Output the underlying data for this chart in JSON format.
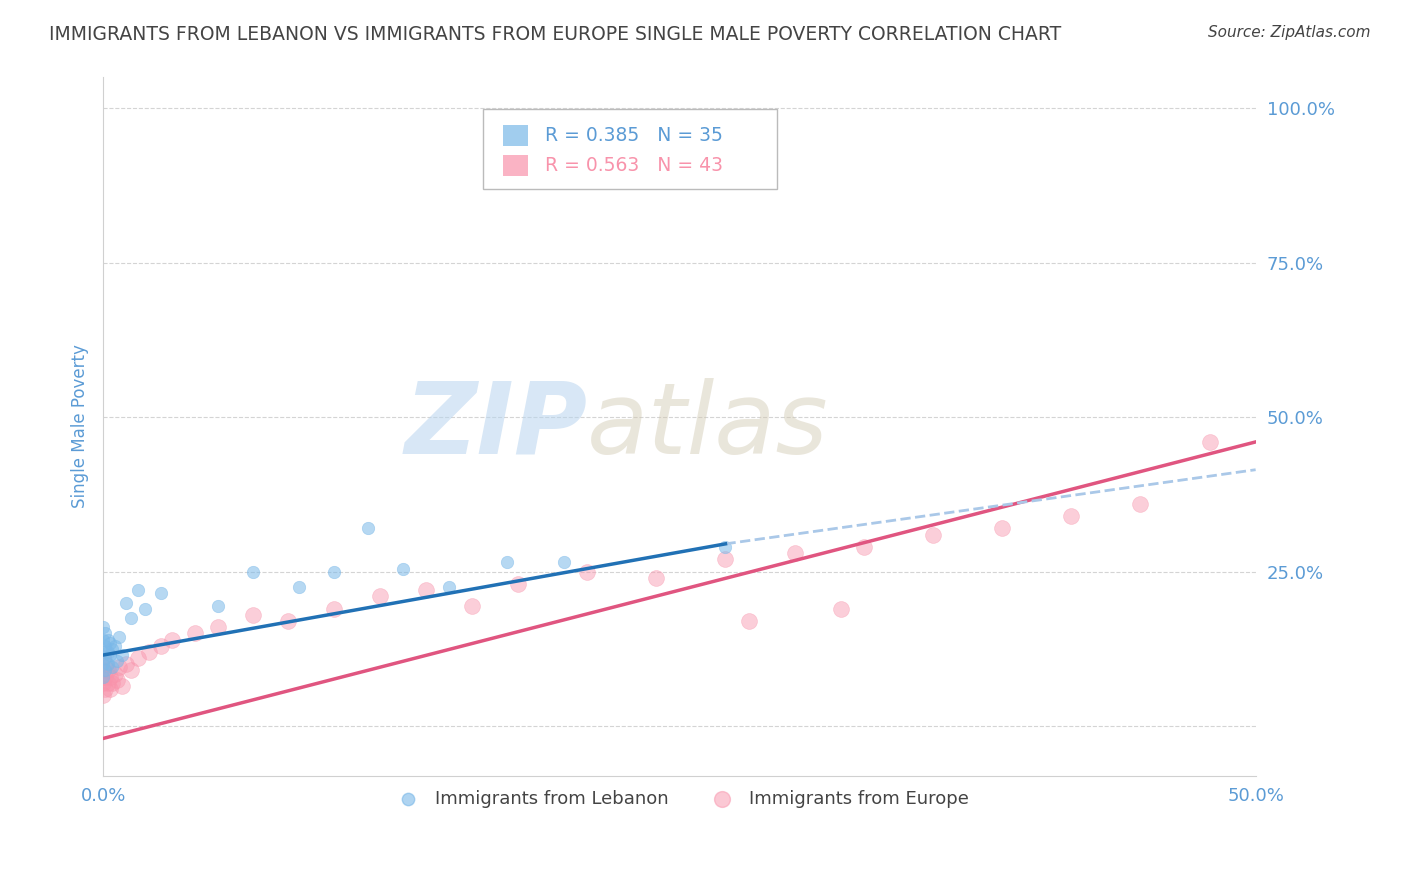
{
  "title": "IMMIGRANTS FROM LEBANON VS IMMIGRANTS FROM EUROPE SINGLE MALE POVERTY CORRELATION CHART",
  "source": "Source: ZipAtlas.com",
  "ylabel": "Single Male Poverty",
  "xlim": [
    0.0,
    0.5
  ],
  "ylim": [
    -0.08,
    1.05
  ],
  "yticks": [
    0.0,
    0.25,
    0.5,
    0.75,
    1.0
  ],
  "ytick_labels": [
    "",
    "25.0%",
    "50.0%",
    "75.0%",
    "100.0%"
  ],
  "xticks": [
    0.0,
    0.1,
    0.2,
    0.3,
    0.4,
    0.5
  ],
  "xtick_labels": [
    "0.0%",
    "",
    "",
    "",
    "",
    "50.0%"
  ],
  "legend1_text": "R = 0.385   N = 35",
  "legend2_text": "R = 0.563   N = 43",
  "legend_label1": "Immigrants from Lebanon",
  "legend_label2": "Immigrants from Europe",
  "color_lebanon": "#7ab8e8",
  "color_europe": "#f893ab",
  "color_trendline_lebanon": "#2171b5",
  "color_trendline_europe": "#e05580",
  "color_trendline_dash": "#aac8e8",
  "watermark_zip": "ZIP",
  "watermark_atlas": "atlas",
  "background_color": "#ffffff",
  "grid_color": "#d0d0d0",
  "title_color": "#444444",
  "axis_label_color": "#5b9bd5",
  "tick_color": "#5b9bd5",
  "lebanon_x": [
    0.0,
    0.0,
    0.0,
    0.0,
    0.0,
    0.001,
    0.001,
    0.001,
    0.001,
    0.002,
    0.002,
    0.002,
    0.003,
    0.003,
    0.004,
    0.004,
    0.005,
    0.006,
    0.007,
    0.008,
    0.01,
    0.012,
    0.015,
    0.018,
    0.025,
    0.05,
    0.065,
    0.085,
    0.1,
    0.13,
    0.15,
    0.175,
    0.2,
    0.27,
    0.115
  ],
  "lebanon_y": [
    0.08,
    0.1,
    0.12,
    0.14,
    0.16,
    0.09,
    0.11,
    0.13,
    0.15,
    0.1,
    0.12,
    0.14,
    0.115,
    0.135,
    0.095,
    0.125,
    0.13,
    0.105,
    0.145,
    0.115,
    0.2,
    0.175,
    0.22,
    0.19,
    0.215,
    0.195,
    0.25,
    0.225,
    0.25,
    0.255,
    0.225,
    0.265,
    0.265,
    0.29,
    0.32
  ],
  "europe_x": [
    0.0,
    0.0,
    0.0,
    0.0,
    0.001,
    0.001,
    0.001,
    0.002,
    0.002,
    0.003,
    0.003,
    0.004,
    0.005,
    0.006,
    0.007,
    0.008,
    0.01,
    0.012,
    0.015,
    0.02,
    0.025,
    0.03,
    0.04,
    0.05,
    0.065,
    0.08,
    0.1,
    0.12,
    0.14,
    0.16,
    0.18,
    0.21,
    0.24,
    0.27,
    0.3,
    0.33,
    0.36,
    0.39,
    0.42,
    0.45,
    0.28,
    0.32,
    0.48
  ],
  "europe_y": [
    0.05,
    0.07,
    0.09,
    0.11,
    0.06,
    0.08,
    0.1,
    0.07,
    0.09,
    0.06,
    0.08,
    0.07,
    0.085,
    0.075,
    0.095,
    0.065,
    0.1,
    0.09,
    0.11,
    0.12,
    0.13,
    0.14,
    0.15,
    0.16,
    0.18,
    0.17,
    0.19,
    0.21,
    0.22,
    0.195,
    0.23,
    0.25,
    0.24,
    0.27,
    0.28,
    0.29,
    0.31,
    0.32,
    0.34,
    0.36,
    0.17,
    0.19,
    0.46
  ],
  "trendline_leb_x0": 0.0,
  "trendline_leb_x1": 0.27,
  "trendline_leb_y0": 0.115,
  "trendline_leb_y1": 0.295,
  "trendline_leb_dash_x0": 0.27,
  "trendline_leb_dash_x1": 0.5,
  "trendline_leb_dash_y0": 0.295,
  "trendline_leb_dash_y1": 0.415,
  "trendline_eur_x0": 0.0,
  "trendline_eur_x1": 0.5,
  "trendline_eur_y0": -0.02,
  "trendline_eur_y1": 0.46,
  "dot_size_lebanon": 80,
  "dot_size_europe": 130
}
